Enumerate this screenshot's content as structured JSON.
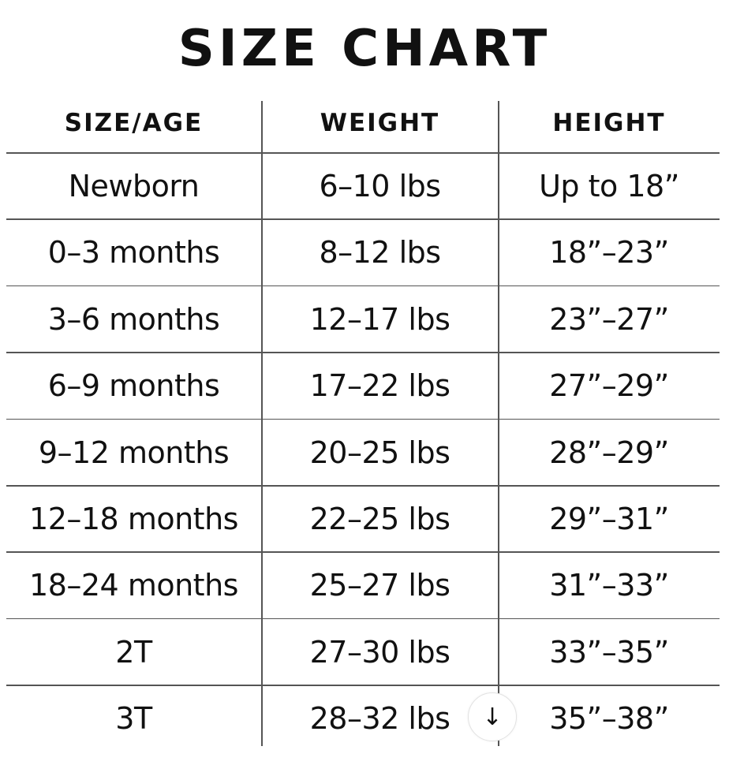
{
  "title": "SIZE CHART",
  "headers": [
    "SIZE/AGE",
    "WEIGHT",
    "HEIGHT"
  ],
  "rows": [
    [
      "Newborn",
      "6–10 lbs",
      "Up to 18”"
    ],
    [
      "0–3 months",
      "8–12 lbs",
      "18”–23”"
    ],
    [
      "3–6 months",
      "12–17 lbs",
      "23”–27”"
    ],
    [
      "6–9 months",
      "17–22 lbs",
      "27”–29”"
    ],
    [
      "9–12 months",
      "20–25 lbs",
      "28”–29”"
    ],
    [
      "12–18 months",
      "22–25 lbs",
      "29”–31”"
    ],
    [
      "18–24 months",
      "25–27 lbs",
      "31”–33”"
    ],
    [
      "2T",
      "27–30 lbs",
      "33”–35”"
    ],
    [
      "3T",
      "28–32 lbs",
      "35”–38”"
    ]
  ],
  "scroll_button": {
    "icon": "arrow-down-icon",
    "glyph": "↓"
  }
}
